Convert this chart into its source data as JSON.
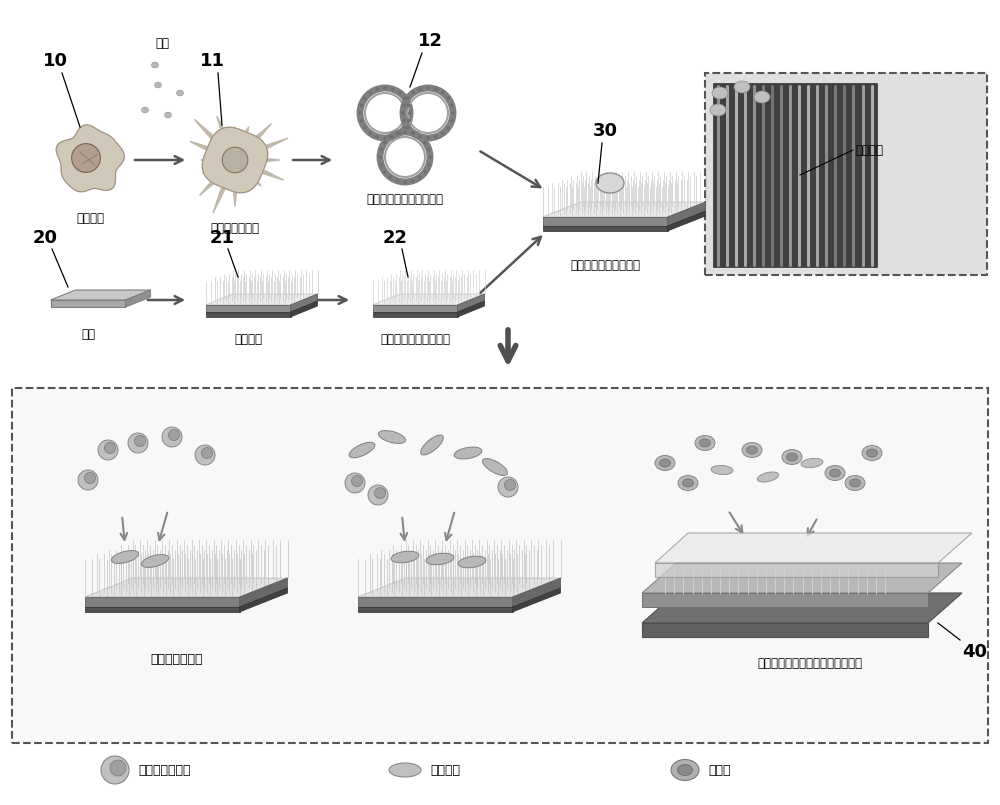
{
  "bg_color": "#ffffff",
  "chinese_labels": {
    "jumo": "巨噬细胞",
    "jimo_stimulated": "受刺激巨噬细胞",
    "membrane": "受刺激巨噬细胞的细胞膜",
    "silicon_wafer": "硅片",
    "silicon_nano": "硅纳米线",
    "positive_nano": "带有正电荷的硅纳米线",
    "cell_coated": "细胞膜包覆的硅纳米线",
    "silicon_nano_line": "硅纳米线",
    "bacteria_capture": "特异性抓捕细菌",
    "microfluidic": "结合微流控芯片清理血液中的细菌",
    "staphylococcus": "金黄色葡萄球菌",
    "ecoli": "大肠杆菌",
    "rbc": "红细胞",
    "bacteria_label": "细菌"
  }
}
